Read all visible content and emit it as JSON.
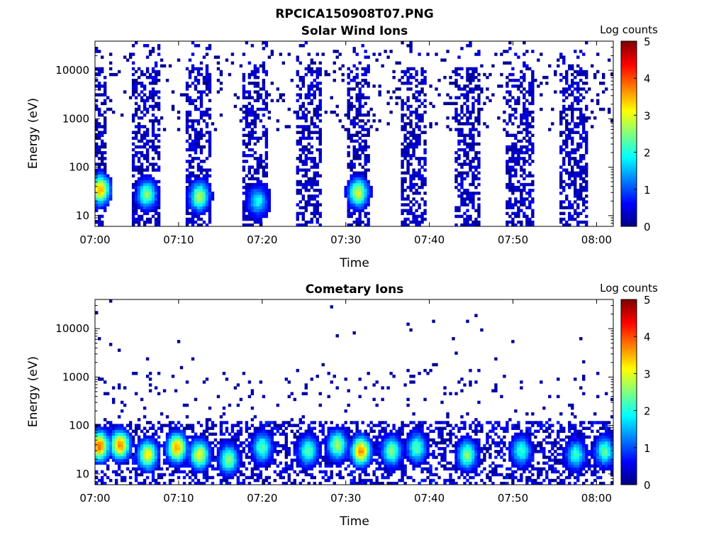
{
  "figure": {
    "title": "RPCICA150908T07.PNG"
  },
  "colorscale": {
    "stops": [
      "#00007f",
      "#0000ff",
      "#007fff",
      "#00ffff",
      "#7fff7f",
      "#ffff00",
      "#ff7f00",
      "#ff0000",
      "#7f0000"
    ]
  },
  "chart_data": [
    {
      "type": "heatmap",
      "title": "Solar Wind Ions",
      "xlabel": "Time",
      "ylabel": "Energy (eV)",
      "x_ticks": [
        "07:00",
        "07:10",
        "07:20",
        "07:30",
        "07:40",
        "07:50",
        "08:00"
      ],
      "y_ticks": [
        "10",
        "100",
        "1000",
        "10000"
      ],
      "y_scale": "log",
      "ylim": [
        6,
        40000
      ],
      "xlim_minutes": [
        0,
        62
      ],
      "colorbar": {
        "label": "Log counts",
        "range": [
          0,
          5
        ],
        "ticks": [
          "0",
          "1",
          "2",
          "3",
          "4",
          "5"
        ]
      },
      "scan_windows_minutes": [
        [
          0,
          1.5
        ],
        [
          4.5,
          7.8
        ],
        [
          11,
          14
        ],
        [
          17.5,
          20.5
        ],
        [
          24,
          27
        ],
        [
          30,
          33
        ],
        [
          36.5,
          39.5
        ],
        [
          43,
          46
        ],
        [
          49,
          52.5
        ],
        [
          55.5,
          59
        ]
      ],
      "hotspots": [
        {
          "t": 0.6,
          "energy": 35,
          "level": 3.4
        },
        {
          "t": 6.2,
          "energy": 28,
          "level": 2.4
        },
        {
          "t": 12.5,
          "energy": 25,
          "level": 2.6
        },
        {
          "t": 31.5,
          "energy": 30,
          "level": 2.8
        },
        {
          "t": 19.5,
          "energy": 20,
          "level": 1.8
        }
      ]
    },
    {
      "type": "heatmap",
      "title": "Cometary Ions",
      "xlabel": "Time",
      "ylabel": "Energy (eV)",
      "x_ticks": [
        "07:00",
        "07:10",
        "07:20",
        "07:30",
        "07:40",
        "07:50",
        "08:00"
      ],
      "y_ticks": [
        "10",
        "100",
        "1000",
        "10000"
      ],
      "y_scale": "log",
      "ylim": [
        6,
        40000
      ],
      "xlim_minutes": [
        0,
        62
      ],
      "colorbar": {
        "label": "Log counts",
        "range": [
          0,
          5
        ],
        "ticks": [
          "0",
          "1",
          "2",
          "3",
          "4",
          "5"
        ]
      },
      "hotspots": [
        {
          "t": 0.5,
          "energy": 38,
          "level": 3.8
        },
        {
          "t": 3.0,
          "energy": 40,
          "level": 3.6
        },
        {
          "t": 6.3,
          "energy": 25,
          "level": 3.0
        },
        {
          "t": 9.8,
          "energy": 35,
          "level": 3.5
        },
        {
          "t": 12.5,
          "energy": 25,
          "level": 2.9
        },
        {
          "t": 16.0,
          "energy": 20,
          "level": 2.4
        },
        {
          "t": 20.0,
          "energy": 35,
          "level": 2.2
        },
        {
          "t": 25.5,
          "energy": 30,
          "level": 2.2
        },
        {
          "t": 29.0,
          "energy": 40,
          "level": 2.6
        },
        {
          "t": 31.8,
          "energy": 30,
          "level": 3.6
        },
        {
          "t": 35.5,
          "energy": 30,
          "level": 2.4
        },
        {
          "t": 38.5,
          "energy": 35,
          "level": 2.2
        },
        {
          "t": 44.5,
          "energy": 25,
          "level": 2.4
        },
        {
          "t": 51.0,
          "energy": 30,
          "level": 2.0
        },
        {
          "t": 57.5,
          "energy": 25,
          "level": 2.0
        },
        {
          "t": 61.0,
          "energy": 30,
          "level": 2.2
        }
      ]
    }
  ]
}
